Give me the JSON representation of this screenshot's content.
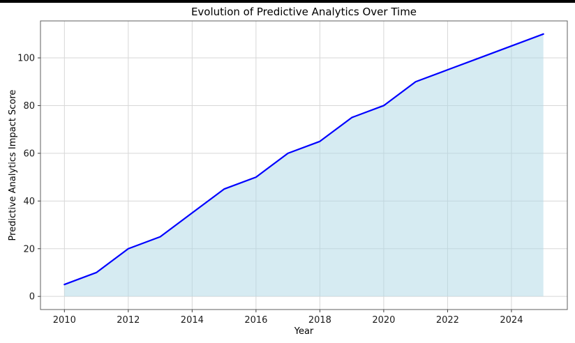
{
  "frame": {
    "top_bar_color": "#000000",
    "background": "#ffffff"
  },
  "chart_data": {
    "type": "area",
    "title": "Evolution of Predictive Analytics Over Time",
    "xlabel": "Year",
    "ylabel": "Predictive Analytics Impact Score",
    "x": [
      2010,
      2011,
      2012,
      2013,
      2014,
      2015,
      2016,
      2017,
      2018,
      2019,
      2020,
      2021,
      2022,
      2023,
      2024,
      2025
    ],
    "values": [
      5,
      10,
      20,
      25,
      35,
      45,
      50,
      60,
      65,
      75,
      80,
      90,
      95,
      100,
      105,
      110
    ],
    "x_ticks": [
      2010,
      2012,
      2014,
      2016,
      2018,
      2020,
      2022,
      2024
    ],
    "y_ticks": [
      0,
      20,
      40,
      60,
      80,
      100
    ],
    "xlim": [
      2009.25,
      2025.75
    ],
    "ylim": [
      -5.5,
      115.5
    ],
    "grid": true,
    "legend": "none",
    "style": {
      "line_color": "#0000ff",
      "line_width": 2.2,
      "fill_color": "#add8e6",
      "fill_opacity": 0.5,
      "grid_color": "#d7d7d7",
      "spine_color": "#5f5f5f",
      "tick_color": "#3a3a3a",
      "tick_label_color": "#1a1a1a",
      "tick_font_size": 13
    }
  }
}
